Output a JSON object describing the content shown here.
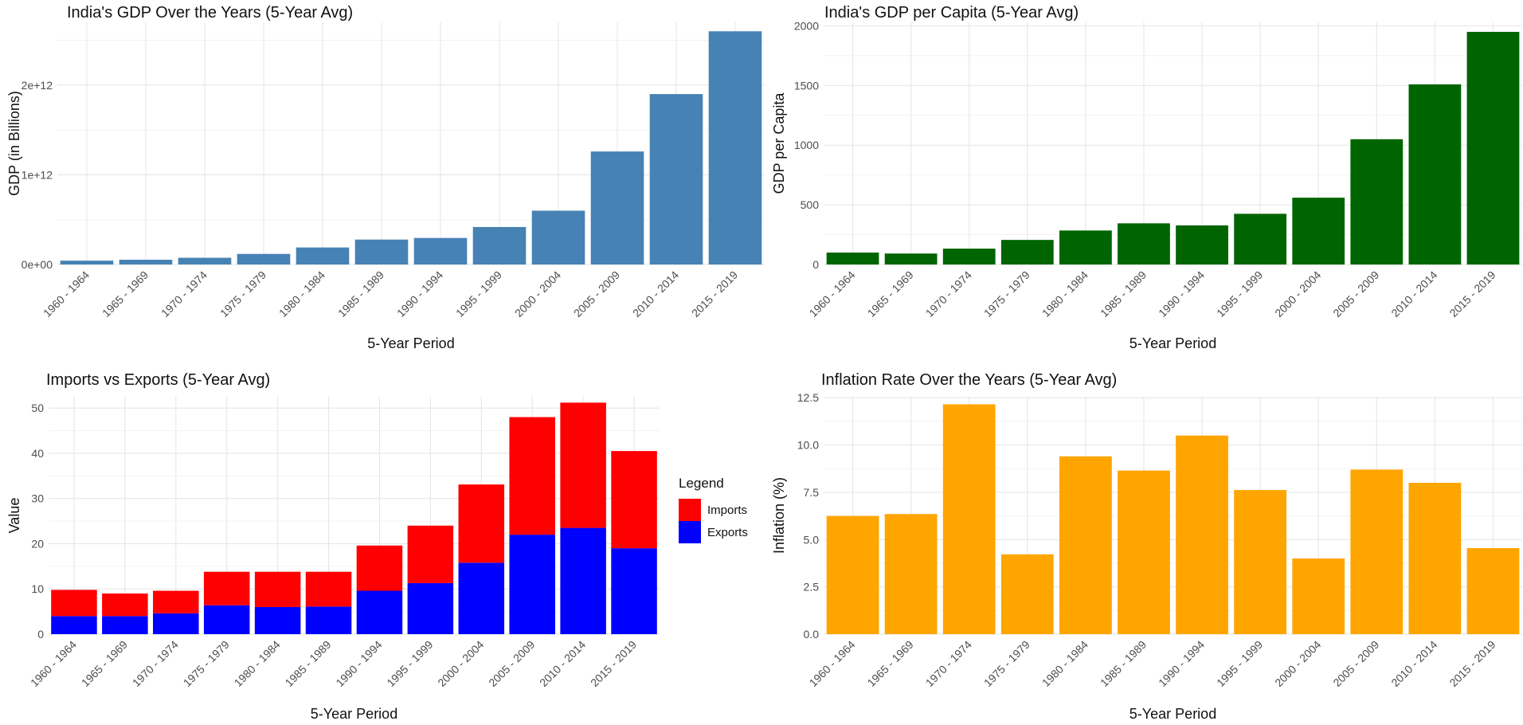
{
  "categories": [
    "1960 - 1964",
    "1965 - 1969",
    "1970 - 1974",
    "1975 - 1979",
    "1980 - 1984",
    "1985 - 1989",
    "1990 - 1994",
    "1995 - 1999",
    "2000 - 2004",
    "2005 - 2009",
    "2010 - 2014",
    "2015 - 2019"
  ],
  "chart_data": [
    {
      "id": "gdp",
      "type": "bar",
      "title": "India's GDP Over the Years (5-Year Avg)",
      "xlabel": "5-Year Period",
      "ylabel": "GDP (in Billions)",
      "ylim": [
        0,
        2700000000000.0
      ],
      "yticks": [
        0,
        1000000000000.0,
        2000000000000.0
      ],
      "ytick_labels": [
        "0e+00",
        "1e+12",
        "2e+12"
      ],
      "grid": true,
      "colors": {
        "bar": "#4682B4"
      },
      "series": [
        {
          "values": [
            43000000000.0,
            53000000000.0,
            75000000000.0,
            118000000000.0,
            190000000000.0,
            278000000000.0,
            296000000000.0,
            418000000000.0,
            600000000000.0,
            1260000000000.0,
            1900000000000.0,
            2600000000000.0
          ]
        }
      ]
    },
    {
      "id": "gdp_per_capita",
      "type": "bar",
      "title": "India's GDP per Capita (5-Year Avg)",
      "xlabel": "5-Year Period",
      "ylabel": "GDP per Capita",
      "ylim": [
        0,
        2030
      ],
      "yticks": [
        0,
        500,
        1000,
        1500,
        2000
      ],
      "ytick_labels": [
        "0",
        "500",
        "1000",
        "1500",
        "2000"
      ],
      "grid": true,
      "colors": {
        "bar": "#006400"
      },
      "series": [
        {
          "values": [
            100,
            92,
            133,
            206,
            285,
            345,
            328,
            425,
            560,
            1050,
            1510,
            1950
          ]
        }
      ]
    },
    {
      "id": "trade",
      "type": "bar",
      "stacked": true,
      "title": "Imports vs Exports (5-Year Avg)",
      "xlabel": "5-Year Period",
      "ylabel": "Value",
      "ylim": [
        0,
        52.5
      ],
      "yticks": [
        0,
        10,
        20,
        30,
        40,
        50
      ],
      "ytick_labels": [
        "0",
        "10",
        "20",
        "30",
        "40",
        "50"
      ],
      "grid": true,
      "legend": {
        "title": "Legend",
        "position": "right"
      },
      "series": [
        {
          "name": "Exports",
          "color": "#0000FF",
          "values": [
            4.0,
            4.0,
            4.6,
            6.4,
            6.0,
            6.1,
            9.6,
            11.3,
            15.8,
            22.0,
            23.5,
            19.0
          ]
        },
        {
          "name": "Imports",
          "color": "#FF0000",
          "values": [
            5.8,
            5.0,
            5.0,
            7.4,
            7.8,
            7.7,
            10.0,
            12.7,
            17.3,
            26.0,
            27.7,
            21.5
          ]
        }
      ]
    },
    {
      "id": "inflation",
      "type": "bar",
      "title": "Inflation Rate Over the Years (5-Year Avg)",
      "xlabel": "5-Year Period",
      "ylabel": "Inflation (%)",
      "ylim": [
        0,
        12.55
      ],
      "yticks": [
        0,
        2.5,
        5,
        7.5,
        10,
        12.5
      ],
      "ytick_labels": [
        "0.0",
        "2.5",
        "5.0",
        "7.5",
        "10.0",
        "12.5"
      ],
      "grid": true,
      "colors": {
        "bar": "#FFA500"
      },
      "series": [
        {
          "values": [
            6.25,
            6.35,
            12.15,
            4.22,
            9.4,
            8.65,
            10.5,
            7.62,
            4.0,
            8.7,
            8.0,
            4.55
          ]
        }
      ]
    }
  ]
}
